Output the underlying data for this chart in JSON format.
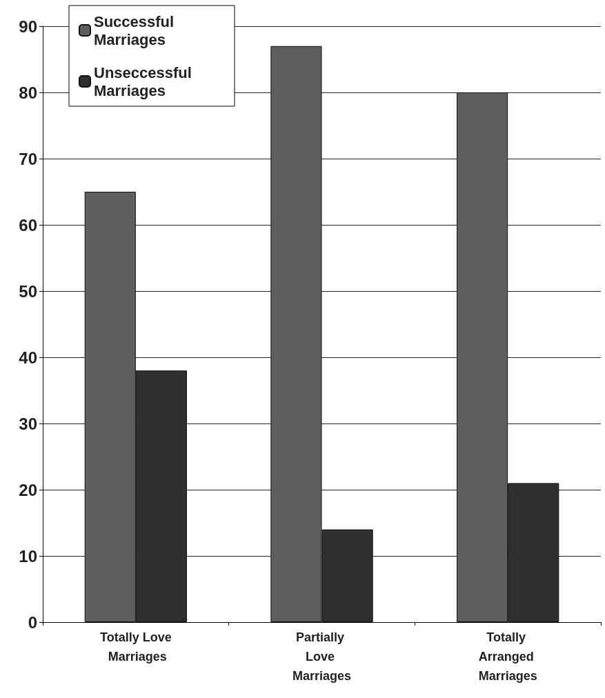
{
  "chart_data": {
    "type": "bar",
    "categories": [
      "Totally Love Marriages",
      "Partially Love Marriages",
      "Totally Arranged Marriages"
    ],
    "series": [
      {
        "name": "Successful Marriages",
        "color": "#5e5e5e",
        "values": [
          65,
          87,
          80
        ]
      },
      {
        "name": "Unseccessful Marriages",
        "color": "#2f2f2f",
        "values": [
          38,
          14,
          21
        ]
      }
    ],
    "ylim": [
      0,
      90
    ],
    "yticks": [
      0,
      10,
      20,
      30,
      40,
      50,
      60,
      70,
      80,
      90
    ],
    "grid": "y",
    "legend": "top left"
  }
}
